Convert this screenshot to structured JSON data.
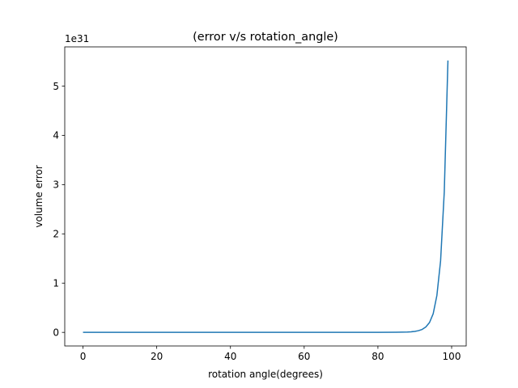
{
  "chart_data": {
    "type": "line",
    "title": "(error v/s rotation_angle)",
    "xlabel": "rotation angle(degrees)",
    "ylabel": "volume error",
    "y_offset_label": "1e31",
    "xlim": [
      -4.95,
      103.95
    ],
    "ylim": [
      -0.276,
      5.796
    ],
    "x_ticks": [
      0,
      20,
      40,
      60,
      80,
      100
    ],
    "x_tick_labels": [
      "0",
      "20",
      "40",
      "60",
      "80",
      "100"
    ],
    "y_ticks": [
      0,
      1,
      2,
      3,
      4,
      5
    ],
    "y_tick_labels": [
      "0",
      "1",
      "2",
      "3",
      "4",
      "5"
    ],
    "grid": false,
    "line_color": "#1f77b4",
    "series": [
      {
        "x": [
          0,
          10,
          20,
          30,
          40,
          50,
          60,
          70,
          80,
          85,
          88,
          89,
          90,
          91,
          92,
          93,
          94,
          95,
          96,
          97,
          98,
          99
        ],
        "values": [
          0,
          0,
          0,
          0,
          0,
          0,
          0,
          0,
          0,
          0.003,
          0.008,
          0.012,
          0.02,
          0.035,
          0.06,
          0.11,
          0.2,
          0.38,
          0.75,
          1.45,
          2.85,
          5.52
        ]
      }
    ]
  }
}
